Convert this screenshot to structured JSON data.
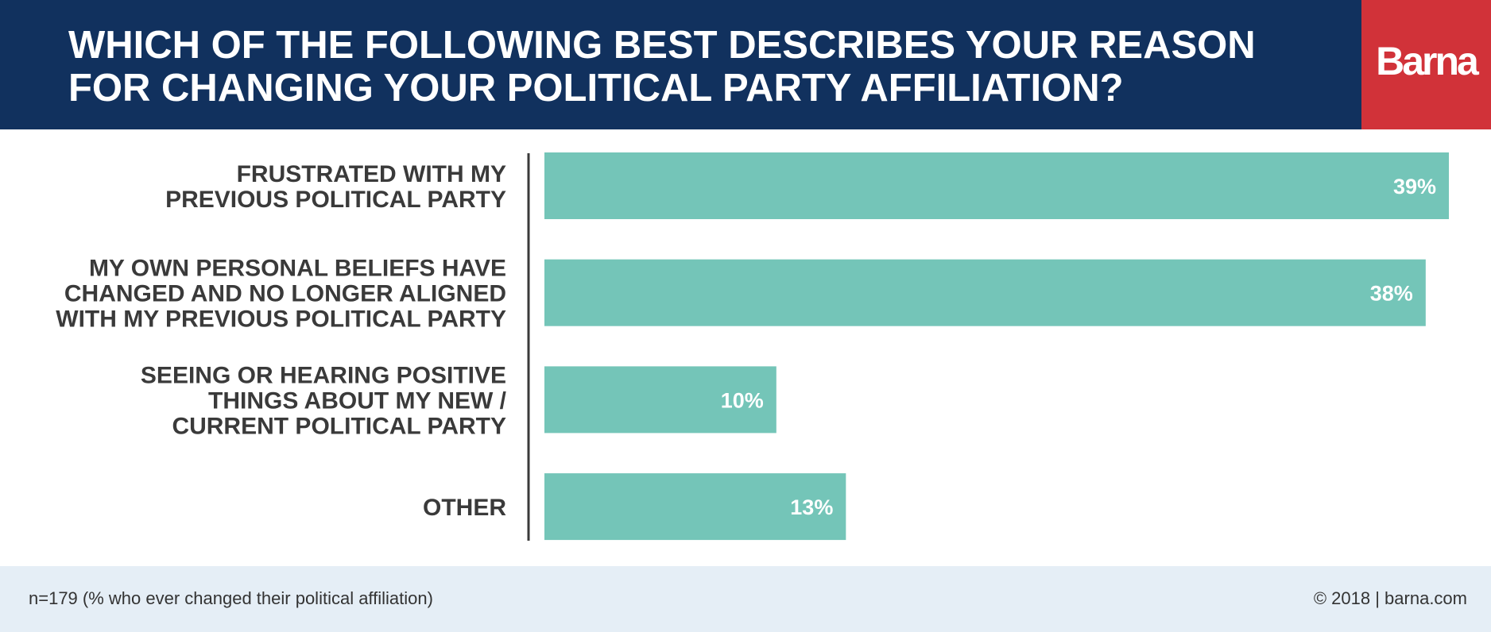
{
  "header": {
    "title_lines": [
      "WHICH OF THE FOLLOWING BEST DESCRIBES YOUR REASON",
      "FOR CHANGING YOUR POLITICAL PARTY AFFILIATION?"
    ],
    "brand": "Barna"
  },
  "colors": {
    "header_bg": "#11315e",
    "brand_bg": "#d13239",
    "bar": "#74c5b8",
    "footer_bg": "#e5eef6",
    "text": "#3a3a3a"
  },
  "chart_data": {
    "type": "bar",
    "orientation": "horizontal",
    "categories": [
      [
        "FRUSTRATED WITH MY",
        "PREVIOUS POLITICAL PARTY"
      ],
      [
        "MY OWN PERSONAL BELIEFS HAVE",
        "CHANGED AND NO LONGER ALIGNED",
        "WITH MY PREVIOUS POLITICAL PARTY"
      ],
      [
        "SEEING OR HEARING POSITIVE",
        "THINGS ABOUT MY NEW /",
        "CURRENT POLITICAL PARTY"
      ],
      [
        "OTHER"
      ]
    ],
    "values": [
      39,
      38,
      10,
      13
    ],
    "value_labels": [
      "39%",
      "38%",
      "10%",
      "13%"
    ],
    "xlim": [
      0,
      39
    ],
    "grid": false
  },
  "footer": {
    "note": "n=179 (% who ever changed their political affiliation)",
    "copyright": "© 2018 | barna.com"
  }
}
